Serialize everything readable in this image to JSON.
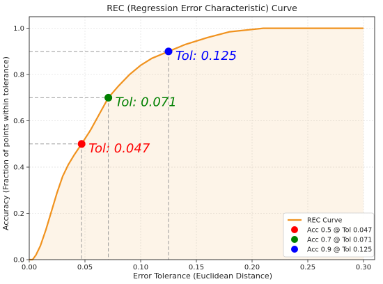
{
  "chart_data": {
    "type": "line",
    "title": "REC (Regression Error Characteristic) Curve",
    "xlabel": "Error Tolerance (Euclidean Distance)",
    "ylabel": "Accuracy (Fraction of points within tolerance)",
    "xlim": [
      0,
      0.31
    ],
    "ylim": [
      0,
      1.05
    ],
    "xticks": [
      "0.00",
      "0.05",
      "0.10",
      "0.15",
      "0.20",
      "0.25",
      "0.30"
    ],
    "yticks": [
      "0.0",
      "0.2",
      "0.4",
      "0.6",
      "0.8",
      "1.0"
    ],
    "grid": true,
    "legend_position": "lower-right",
    "series": [
      {
        "name": "REC Curve",
        "color": "#f0921e",
        "x": [
          0,
          0.003,
          0.006,
          0.01,
          0.015,
          0.02,
          0.025,
          0.03,
          0.035,
          0.04,
          0.047,
          0.055,
          0.063,
          0.071,
          0.08,
          0.09,
          0.1,
          0.11,
          0.125,
          0.14,
          0.16,
          0.18,
          0.2,
          0.21,
          0.22,
          0.25,
          0.3
        ],
        "y": [
          0,
          0,
          0.02,
          0.06,
          0.13,
          0.21,
          0.29,
          0.36,
          0.41,
          0.45,
          0.5,
          0.56,
          0.63,
          0.7,
          0.75,
          0.8,
          0.84,
          0.87,
          0.9,
          0.93,
          0.96,
          0.985,
          0.995,
          1.0,
          1.0,
          1.0,
          1.0
        ]
      }
    ],
    "markers": [
      {
        "label": "Acc 0.5 @ Tol 0.047",
        "annotation": "Tol: 0.047",
        "x": 0.047,
        "y": 0.5,
        "color": "#ff0000"
      },
      {
        "label": "Acc 0.7 @ Tol 0.071",
        "annotation": "Tol: 0.071",
        "x": 0.071,
        "y": 0.7,
        "color": "#008000"
      },
      {
        "label": "Acc 0.9 @ Tol 0.125",
        "annotation": "Tol: 0.125",
        "x": 0.125,
        "y": 0.9,
        "color": "#0000ff"
      }
    ]
  }
}
